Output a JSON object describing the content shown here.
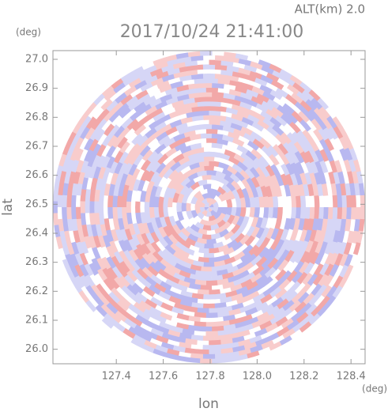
{
  "chart_data": {
    "type": "radar-ppi",
    "title": "2017/10/24 21:41:00",
    "altitude": "ALT(km) 2.0",
    "y_unit": "(deg)",
    "x_unit": "(deg)",
    "xlabel": "lon",
    "ylabel": "lat",
    "xlim": [
      127.13,
      128.46
    ],
    "ylim": [
      25.95,
      27.03
    ],
    "xticks": [
      127.4,
      127.6,
      127.8,
      {
        "value": 128.0,
        "label": "128.0"
      },
      128.2,
      128.4
    ],
    "yticks": [
      {
        "value": 26.0,
        "label": "26.0"
      },
      26.1,
      26.2,
      26.3,
      26.4,
      26.5,
      26.6,
      26.7,
      26.8,
      26.9,
      {
        "value": 27.0,
        "label": "27.0"
      }
    ]
  }
}
